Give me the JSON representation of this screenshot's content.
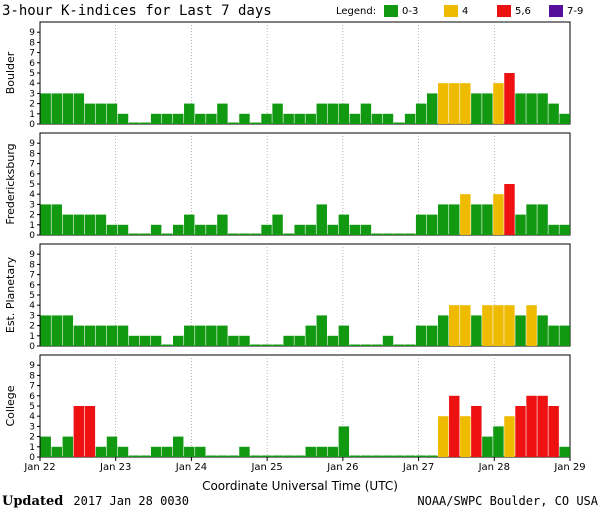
{
  "title": "3-hour K-indices for Last 7 days",
  "legend": {
    "label": "Legend:",
    "items": [
      {
        "label": "0-3",
        "color": "#119911"
      },
      {
        "label": "4",
        "color": "#eebb00"
      },
      {
        "label": "5,6",
        "color": "#ee1111"
      },
      {
        "label": "7-9",
        "color": "#551199"
      }
    ]
  },
  "footer": {
    "updated_label": "Updated",
    "updated_value": "2017 Jan 28 0030",
    "credit": "NOAA/SWPC Boulder, CO USA"
  },
  "chart_data": {
    "type": "bar",
    "xlabel": "Coordinate Universal Time (UTC)",
    "x_ticks": [
      "Jan 22",
      "Jan 23",
      "Jan 24",
      "Jan 25",
      "Jan 26",
      "Jan 27",
      "Jan 28",
      "Jan 29"
    ],
    "y_ticks": [
      "0",
      "1",
      "2",
      "3",
      "4",
      "5",
      "6",
      "7",
      "8",
      "9"
    ],
    "ylim": [
      0,
      9
    ],
    "interval_hours": 3,
    "color_scale": {
      "0-3": "#119911",
      "4": "#eebb00",
      "5,6": "#ee1111",
      "7-9": "#551199"
    },
    "series": [
      {
        "name": "Boulder",
        "values": [
          3,
          3,
          3,
          3,
          2,
          2,
          2,
          1,
          0,
          0,
          1,
          1,
          1,
          2,
          1,
          1,
          2,
          0,
          1,
          0,
          1,
          2,
          1,
          1,
          1,
          2,
          2,
          2,
          1,
          2,
          1,
          1,
          0,
          1,
          2,
          3,
          4,
          4,
          4,
          3,
          3,
          4,
          5,
          3,
          3,
          3,
          2,
          1
        ]
      },
      {
        "name": "Fredericksburg",
        "values": [
          3,
          3,
          2,
          2,
          2,
          2,
          1,
          1,
          0,
          0,
          1,
          0,
          1,
          2,
          1,
          1,
          2,
          0,
          0,
          0,
          1,
          2,
          0,
          1,
          1,
          3,
          1,
          2,
          1,
          1,
          0,
          0,
          0,
          0,
          2,
          2,
          3,
          3,
          4,
          3,
          3,
          4,
          5,
          2,
          3,
          3,
          1,
          1
        ]
      },
      {
        "name": "Est. Planetary",
        "values": [
          3,
          3,
          3,
          2,
          2,
          2,
          2,
          2,
          1,
          1,
          1,
          0,
          1,
          2,
          2,
          2,
          2,
          1,
          1,
          0,
          0,
          0,
          1,
          1,
          2,
          3,
          1,
          2,
          0,
          0,
          0,
          1,
          0,
          0,
          2,
          2,
          3,
          4,
          4,
          3,
          4,
          4,
          4,
          3,
          4,
          3,
          2,
          2
        ]
      },
      {
        "name": "College",
        "values": [
          2,
          1,
          2,
          5,
          5,
          1,
          2,
          1,
          0,
          0,
          1,
          1,
          2,
          1,
          1,
          0,
          0,
          0,
          1,
          0,
          0,
          0,
          0,
          0,
          1,
          1,
          1,
          3,
          0,
          0,
          0,
          0,
          0,
          0,
          0,
          0,
          4,
          6,
          4,
          5,
          2,
          3,
          4,
          5,
          6,
          6,
          5,
          1
        ]
      }
    ]
  }
}
